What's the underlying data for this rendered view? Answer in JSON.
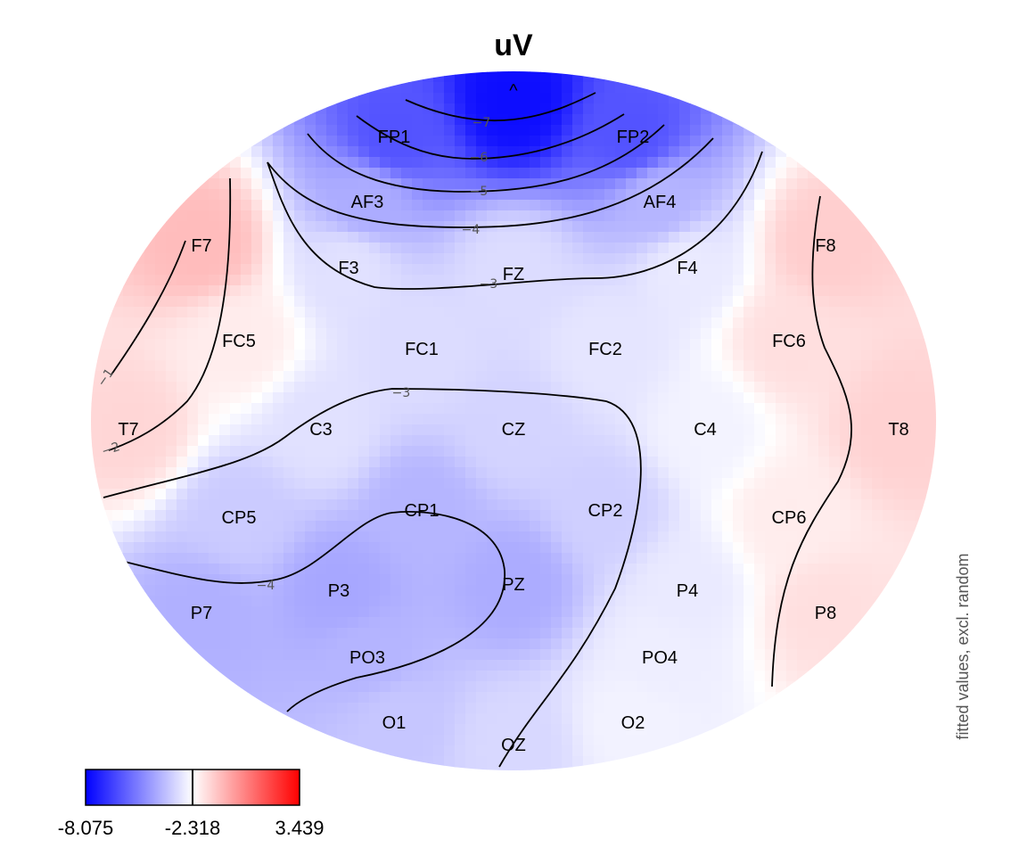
{
  "chart_data": {
    "type": "heatmap",
    "subtype": "eeg-topographic-map",
    "title": "uV",
    "side_label": "fitted values, excl. random",
    "nose_marker": "^",
    "colors": {
      "low": "#0000ff",
      "mid": "#ffffff",
      "high": "#ff0000",
      "line": "#000000"
    },
    "colorbar": {
      "min": -8.075,
      "center": -2.318,
      "max": 3.439,
      "tick_labels": [
        "-8.075",
        "-2.318",
        "3.439"
      ]
    },
    "electrodes": [
      {
        "name": "FP1",
        "value": -6.2
      },
      {
        "name": "FP2",
        "value": -6.2
      },
      {
        "name": "AF3",
        "value": -4.2
      },
      {
        "name": "AF4",
        "value": -4.0
      },
      {
        "name": "F7",
        "value": -0.8
      },
      {
        "name": "F3",
        "value": -3.0
      },
      {
        "name": "FZ",
        "value": -3.1
      },
      {
        "name": "F4",
        "value": -2.8
      },
      {
        "name": "F8",
        "value": -1.2
      },
      {
        "name": "FC5",
        "value": -1.9
      },
      {
        "name": "FC1",
        "value": -3.1
      },
      {
        "name": "FC2",
        "value": -2.9
      },
      {
        "name": "FC6",
        "value": -1.6
      },
      {
        "name": "T7",
        "value": -1.4
      },
      {
        "name": "C3",
        "value": -3.0
      },
      {
        "name": "CZ",
        "value": -3.3
      },
      {
        "name": "C4",
        "value": -2.6
      },
      {
        "name": "T8",
        "value": -1.3
      },
      {
        "name": "CP5",
        "value": -3.5
      },
      {
        "name": "CP1",
        "value": -4.0
      },
      {
        "name": "CP2",
        "value": -3.4
      },
      {
        "name": "CP6",
        "value": -1.9
      },
      {
        "name": "P7",
        "value": -4.1
      },
      {
        "name": "P3",
        "value": -4.3
      },
      {
        "name": "PZ",
        "value": -4.2
      },
      {
        "name": "P4",
        "value": -2.8
      },
      {
        "name": "P8",
        "value": -1.6
      },
      {
        "name": "PO3",
        "value": -4.0
      },
      {
        "name": "PO4",
        "value": -2.7
      },
      {
        "name": "O1",
        "value": -3.6
      },
      {
        "name": "OZ",
        "value": -3.2
      },
      {
        "name": "O2",
        "value": -2.6
      }
    ],
    "contour_levels": [
      -7,
      -6,
      -5,
      -4,
      -3,
      -4,
      -3,
      -2,
      -1
    ],
    "contour_labels": [
      "−7",
      "−6",
      "−5",
      "−4",
      "−3",
      "−4",
      "−3",
      "−2",
      "−1"
    ]
  }
}
